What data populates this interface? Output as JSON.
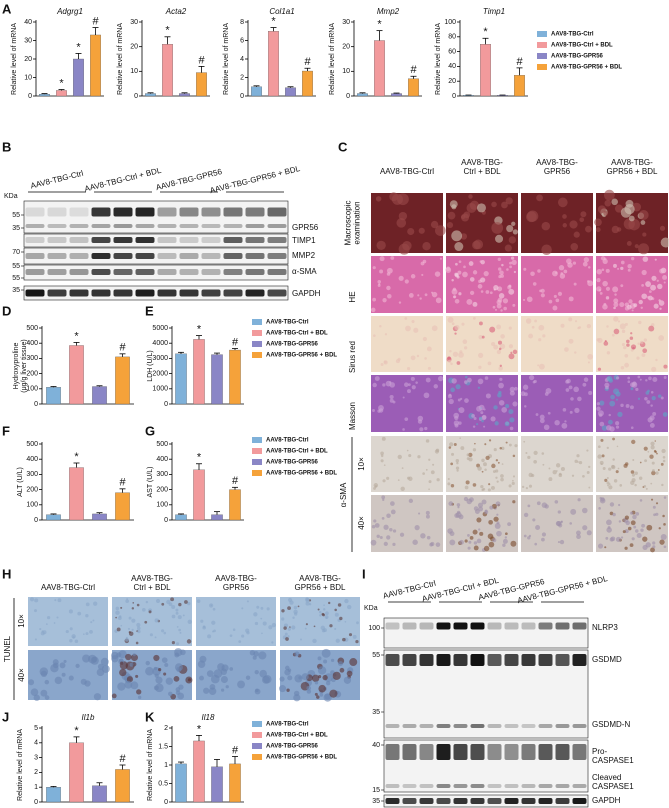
{
  "chart_data": [
    {
      "type": "bar",
      "panel": "A",
      "title": "Adgrg1",
      "ylabel": "Relative level of mRNA",
      "categories": [
        null,
        null,
        null,
        null
      ],
      "values": [
        1,
        3,
        20,
        33
      ],
      "errors": [
        0.3,
        0.5,
        3,
        4
      ],
      "colors": [
        "#7fb1d9",
        "#f29a9c",
        "#8a86c6",
        "#f5a23a"
      ],
      "annotations": [
        {
          "index": 1,
          "text": "*"
        },
        {
          "index": 2,
          "text": "*"
        },
        {
          "index": 3,
          "text": "#"
        }
      ],
      "ylim": [
        0,
        40
      ],
      "yticks": [
        0,
        10,
        20,
        30,
        40
      ]
    },
    {
      "type": "bar",
      "title": "Acta2",
      "ylabel": "Relative level of mRNA",
      "categories": [
        null,
        null,
        null,
        null
      ],
      "values": [
        1,
        21,
        1,
        9.5
      ],
      "errors": [
        0.3,
        3,
        0.3,
        2.5
      ],
      "colors": [
        "#7fb1d9",
        "#f29a9c",
        "#8a86c6",
        "#f5a23a"
      ],
      "annotations": [
        {
          "index": 1,
          "text": "*"
        },
        {
          "index": 3,
          "text": "#"
        }
      ],
      "ylim": [
        0,
        30
      ],
      "yticks": [
        0,
        10,
        20,
        30
      ]
    },
    {
      "type": "bar",
      "title": "Col1a1",
      "ylabel": "Relative level of mRNA",
      "categories": [
        null,
        null,
        null,
        null
      ],
      "values": [
        1,
        7,
        0.9,
        2.7
      ],
      "errors": [
        0.1,
        0.4,
        0.1,
        0.3
      ],
      "colors": [
        "#7fb1d9",
        "#f29a9c",
        "#8a86c6",
        "#f5a23a"
      ],
      "annotations": [
        {
          "index": 1,
          "text": "*"
        },
        {
          "index": 3,
          "text": "#"
        }
      ],
      "ylim": [
        0,
        8
      ],
      "yticks": [
        0,
        2,
        4,
        6,
        8
      ]
    },
    {
      "type": "bar",
      "title": "Mmp2",
      "ylabel": "Relative level of mRNA",
      "categories": [
        null,
        null,
        null,
        null
      ],
      "values": [
        1,
        22.5,
        1,
        7
      ],
      "errors": [
        0.3,
        4,
        0.2,
        1
      ],
      "colors": [
        "#7fb1d9",
        "#f29a9c",
        "#8a86c6",
        "#f5a23a"
      ],
      "annotations": [
        {
          "index": 1,
          "text": "*"
        },
        {
          "index": 3,
          "text": "#"
        }
      ],
      "ylim": [
        0,
        30
      ],
      "yticks": [
        0,
        10,
        20,
        30
      ]
    },
    {
      "type": "bar",
      "title": "Timp1",
      "ylabel": "Relative level of mRNA",
      "categories": [
        null,
        null,
        null,
        null
      ],
      "values": [
        1,
        70,
        1,
        28
      ],
      "errors": [
        0.3,
        8,
        0.3,
        10
      ],
      "colors": [
        "#7fb1d9",
        "#f29a9c",
        "#8a86c6",
        "#f5a23a"
      ],
      "annotations": [
        {
          "index": 1,
          "text": "*"
        },
        {
          "index": 3,
          "text": "#"
        }
      ],
      "ylim": [
        0,
        100
      ],
      "yticks": [
        0,
        20,
        40,
        60,
        80,
        100
      ],
      "legend": [
        {
          "name": "AAV8-TBG-Ctrl",
          "color": "#7fb1d9"
        },
        {
          "name": "AAV8-TBG-Ctrl + BDL",
          "color": "#f29a9c"
        },
        {
          "name": "AAV8-TBG-GPR56",
          "color": "#8a86c6"
        },
        {
          "name": "AAV8-TBG-GPR56 + BDL",
          "color": "#f5a23a"
        }
      ]
    },
    {
      "type": "bar",
      "panel": "D",
      "ylabel": [
        "Hydroxyproline",
        "(μg/g liver tissue)"
      ],
      "categories": [
        null,
        null,
        null,
        null
      ],
      "values": [
        110,
        385,
        115,
        310
      ],
      "errors": [
        5,
        20,
        5,
        20
      ],
      "colors": [
        "#7fb1d9",
        "#f29a9c",
        "#8a86c6",
        "#f5a23a"
      ],
      "annotations": [
        {
          "index": 1,
          "text": "*"
        },
        {
          "index": 3,
          "text": "#"
        }
      ],
      "ylim": [
        0,
        500
      ],
      "yticks": [
        0,
        100,
        200,
        300,
        400,
        500
      ]
    },
    {
      "type": "bar",
      "panel": "E",
      "ylabel": "LDH (U/L)",
      "categories": [
        null,
        null,
        null,
        null
      ],
      "values": [
        3300,
        4250,
        3250,
        3550
      ],
      "errors": [
        100,
        250,
        100,
        100
      ],
      "colors": [
        "#7fb1d9",
        "#f29a9c",
        "#8a86c6",
        "#f5a23a"
      ],
      "annotations": [
        {
          "index": 1,
          "text": "*"
        },
        {
          "index": 3,
          "text": "#"
        }
      ],
      "ylim": [
        0,
        5000
      ],
      "yticks": [
        0,
        1000,
        2000,
        3000,
        4000,
        5000
      ],
      "legend": [
        {
          "name": "AAV8-TBG-Ctrl",
          "color": "#7fb1d9"
        },
        {
          "name": "AAV8-TBG-Ctrl + BDL",
          "color": "#f29a9c"
        },
        {
          "name": "AAV8-TBG-GPR56",
          "color": "#8a86c6"
        },
        {
          "name": "AAV8-TBG-GPR56 + BDL",
          "color": "#f5a23a"
        }
      ]
    },
    {
      "type": "bar",
      "panel": "F",
      "ylabel": "ALT (U/L)",
      "categories": [
        null,
        null,
        null,
        null
      ],
      "values": [
        35,
        345,
        40,
        180
      ],
      "errors": [
        5,
        30,
        8,
        25
      ],
      "colors": [
        "#7fb1d9",
        "#f29a9c",
        "#8a86c6",
        "#f5a23a"
      ],
      "annotations": [
        {
          "index": 1,
          "text": "*"
        },
        {
          "index": 3,
          "text": "#"
        }
      ],
      "ylim": [
        0,
        500
      ],
      "yticks": [
        0,
        100,
        200,
        300,
        400,
        500
      ]
    },
    {
      "type": "bar",
      "panel": "G",
      "ylabel": "AST (U/L)",
      "categories": [
        null,
        null,
        null,
        null
      ],
      "values": [
        35,
        330,
        35,
        200
      ],
      "errors": [
        5,
        40,
        20,
        15
      ],
      "colors": [
        "#7fb1d9",
        "#f29a9c",
        "#8a86c6",
        "#f5a23a"
      ],
      "annotations": [
        {
          "index": 1,
          "text": "*"
        },
        {
          "index": 3,
          "text": "#"
        }
      ],
      "ylim": [
        0,
        500
      ],
      "yticks": [
        0,
        100,
        200,
        300,
        400,
        500
      ],
      "legend": [
        {
          "name": "AAV8-TBG-Ctrl",
          "color": "#7fb1d9"
        },
        {
          "name": "AAV8-TBG-Ctrl + BDL",
          "color": "#f29a9c"
        },
        {
          "name": "AAV8-TBG-GPR56",
          "color": "#8a86c6"
        },
        {
          "name": "AAV8-TBG-GPR56 + BDL",
          "color": "#f5a23a"
        }
      ]
    },
    {
      "type": "bar",
      "panel": "J",
      "title": "Il1b",
      "ylabel": "Relative level of mRNA",
      "categories": [
        null,
        null,
        null,
        null
      ],
      "values": [
        1,
        4,
        1.1,
        2.2
      ],
      "errors": [
        0.05,
        0.4,
        0.2,
        0.3
      ],
      "colors": [
        "#7fb1d9",
        "#f29a9c",
        "#8a86c6",
        "#f5a23a"
      ],
      "annotations": [
        {
          "index": 1,
          "text": "*"
        },
        {
          "index": 3,
          "text": "#"
        }
      ],
      "ylim": [
        0,
        5
      ],
      "yticks": [
        0,
        1,
        2,
        3,
        4,
        5
      ]
    },
    {
      "type": "bar",
      "panel": "K",
      "title": "Il18",
      "ylabel": "Relative level of mRNA",
      "categories": [
        null,
        null,
        null,
        null
      ],
      "values": [
        1.03,
        1.65,
        0.95,
        1.03
      ],
      "errors": [
        0.05,
        0.15,
        0.2,
        0.2
      ],
      "colors": [
        "#7fb1d9",
        "#f29a9c",
        "#8a86c6",
        "#f5a23a"
      ],
      "annotations": [
        {
          "index": 1,
          "text": "*"
        },
        {
          "index": 3,
          "text": "#"
        }
      ],
      "ylim": [
        0,
        2
      ],
      "yticks": [
        0,
        0.5,
        1,
        1.5,
        2
      ],
      "legend": [
        {
          "name": "AAV8-TBG-Ctrl",
          "color": "#7fb1d9"
        },
        {
          "name": "AAV8-TBG-Ctrl + BDL",
          "color": "#f29a9c"
        },
        {
          "name": "AAV8-TBG-GPR56",
          "color": "#8a86c6"
        },
        {
          "name": "AAV8-TBG-GPR56 + BDL",
          "color": "#f5a23a"
        }
      ]
    }
  ],
  "blot_b": {
    "panel": "B",
    "unit": "KDa",
    "lanes": [
      "AAV8-TBG-Ctrl",
      "AAV8-TBG-Ctrl + BDL",
      "AAV8-TBG-GPR56",
      "AAV8-TBG-GPR56 + BDL"
    ],
    "markers": [
      "55",
      "35",
      "70",
      "55",
      "55",
      "35"
    ],
    "bands": [
      "GPR56",
      "TIMP1",
      "MMP2",
      "α-SMA",
      "GAPDH"
    ]
  },
  "histology_c": {
    "panel": "C",
    "columns": [
      [
        "AAV8-TBG-Ctrl"
      ],
      [
        "AAV8-TBG-",
        "Ctrl + BDL"
      ],
      [
        "AAV8-TBG-",
        "GPR56"
      ],
      [
        "AAV8-TBG-",
        "GPR56 + BDL"
      ]
    ],
    "rows": [
      [
        "Macroscopic",
        "examination"
      ],
      [
        "HE"
      ],
      [
        "Sirus red"
      ],
      [
        "Masson"
      ],
      [
        "10×"
      ],
      [
        "40×"
      ]
    ],
    "group": "α-SMA"
  },
  "histology_h": {
    "panel": "H",
    "columns": [
      [
        "AAV8-TBG-Ctrl"
      ],
      [
        "AAV8-TBG-",
        "Ctrl + BDL"
      ],
      [
        "AAV8-TBG-",
        "GPR56"
      ],
      [
        "AAV8-TBG-",
        "GPR56 + BDL"
      ]
    ],
    "rows": [
      "10×",
      "40×"
    ],
    "group": "TUNEL"
  },
  "blot_i": {
    "panel": "I",
    "unit": "KDa",
    "lanes": [
      "AAV8-TBG-Ctrl",
      "AAV8-TBG-Ctrl + BDL",
      "AAV8-TBG-GPR56",
      "AAV8-TBG-GPR56 + BDL"
    ],
    "markers": [
      "100",
      "55",
      "35",
      "40",
      "15",
      "35"
    ],
    "bands": [
      [
        "NLRP3"
      ],
      [
        "GSDMD"
      ],
      [
        "GSDMD-N"
      ],
      [
        "Pro-",
        "CASPASE1"
      ],
      [
        "Cleaved",
        "CASPASE1"
      ],
      [
        "GAPDH"
      ]
    ]
  }
}
